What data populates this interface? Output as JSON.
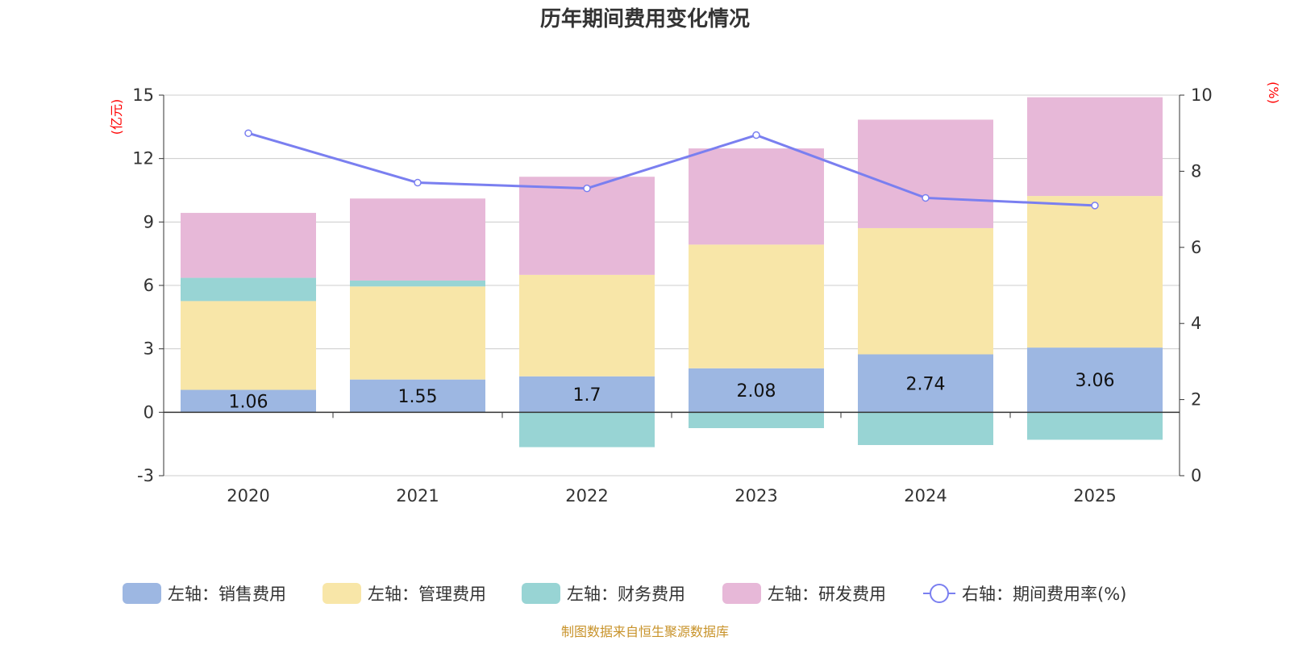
{
  "chart_data": {
    "type": "bar",
    "stacked": true,
    "title": "历年期间费用变化情况",
    "categories": [
      "2020",
      "2021",
      "2022",
      "2023",
      "2024",
      "2025"
    ],
    "left_axis": {
      "unit": "(亿元)",
      "ylim": [
        -3,
        15
      ],
      "ticks": [
        15,
        12,
        9,
        6,
        3,
        0,
        -3
      ]
    },
    "right_axis": {
      "unit": "(%)",
      "ylim": [
        0,
        10
      ],
      "ticks": [
        10,
        8,
        6,
        4,
        2,
        0
      ]
    },
    "series": [
      {
        "name": "左轴：销售费用",
        "type": "bar",
        "axis": "left",
        "color": "#9db7e2",
        "values": [
          1.06,
          1.55,
          1.7,
          2.08,
          2.74,
          3.06
        ],
        "show_labels": true
      },
      {
        "name": "左轴：管理费用",
        "type": "bar",
        "axis": "left",
        "color": "#f8e6a8",
        "values": [
          4.2,
          4.4,
          4.8,
          5.85,
          5.97,
          7.17
        ],
        "show_labels": false
      },
      {
        "name": "左轴：财务费用",
        "type": "bar",
        "axis": "left",
        "color": "#98d4d4",
        "values": [
          1.1,
          0.28,
          -1.65,
          -0.75,
          -1.55,
          -1.3
        ],
        "show_labels": false
      },
      {
        "name": "左轴：研发费用",
        "type": "bar",
        "axis": "left",
        "color": "#e7b8d8",
        "values": [
          3.07,
          3.88,
          4.64,
          4.55,
          5.13,
          4.67
        ],
        "show_labels": false
      },
      {
        "name": "右轴：期间费用率(%)",
        "type": "line",
        "axis": "right",
        "color": "#7a7ff0",
        "values": [
          9.0,
          7.7,
          7.55,
          8.95,
          7.3,
          7.1
        ]
      }
    ],
    "source": "制图数据来自恒生聚源数据库"
  }
}
